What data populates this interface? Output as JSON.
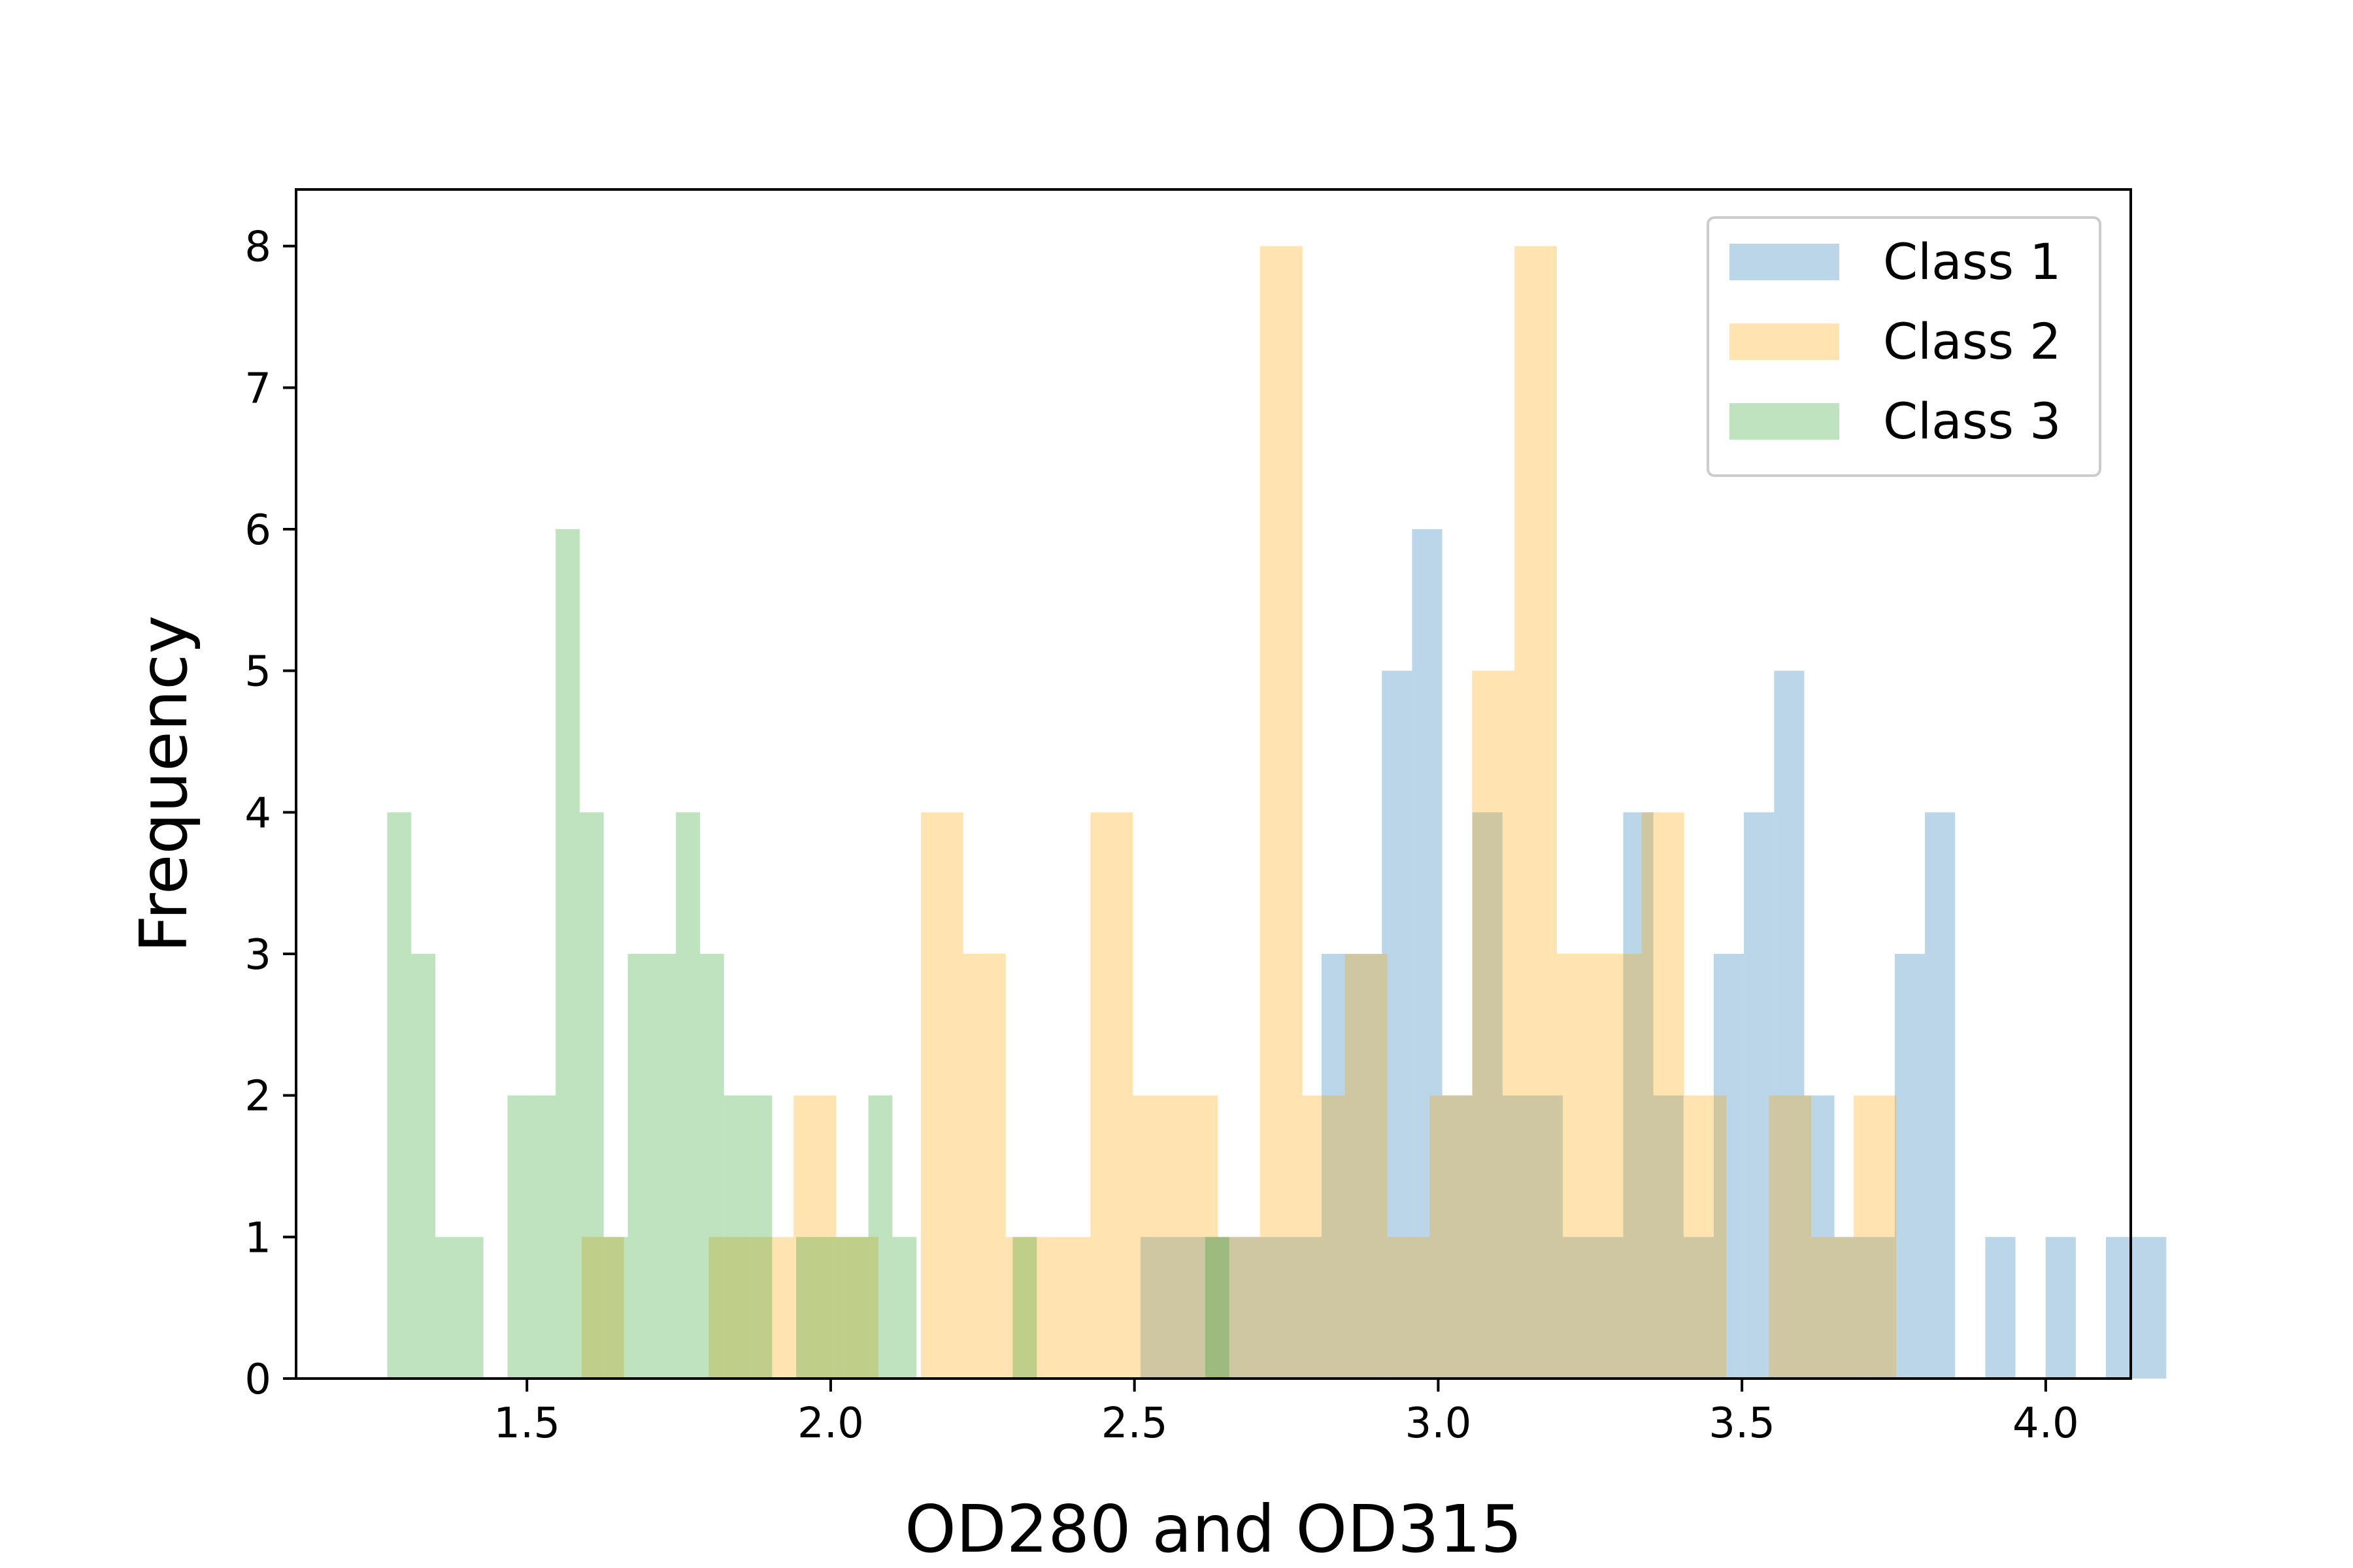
{
  "chart_data": {
    "type": "bar",
    "subtype": "overlapping-histogram",
    "title": "",
    "xlabel": "OD280 and OD315",
    "ylabel": "Frequency",
    "xlim": [
      1.12,
      4.14
    ],
    "ylim": [
      0,
      8.4
    ],
    "xticks": [
      1.5,
      2.0,
      2.5,
      3.0,
      3.5,
      4.0
    ],
    "xtick_labels": [
      "1.5",
      "2.0",
      "2.5",
      "3.0",
      "3.5",
      "4.0"
    ],
    "yticks": [
      0,
      1,
      2,
      3,
      4,
      5,
      6,
      7,
      8
    ],
    "ytick_labels": [
      "0",
      "1",
      "2",
      "3",
      "4",
      "5",
      "6",
      "7",
      "8"
    ],
    "grid": false,
    "legend_position": "upper right",
    "bar_alpha": 0.3,
    "series": [
      {
        "name": "Class 1",
        "color": "#1f77b4",
        "bin_start": 2.51,
        "bin_width": 0.04966,
        "counts": [
          1,
          1,
          1,
          1,
          1,
          1,
          3,
          3,
          5,
          6,
          2,
          4,
          2,
          2,
          1,
          1,
          4,
          2,
          1,
          3,
          4,
          5,
          2,
          1,
          1,
          3,
          4,
          0,
          1,
          0,
          1,
          0,
          1,
          1
        ]
      },
      {
        "name": "Class 2",
        "color": "#ffa500",
        "bin_start": 1.59,
        "bin_width": 0.0698,
        "counts": [
          1,
          0,
          0,
          1,
          1,
          2,
          1,
          0,
          4,
          3,
          1,
          1,
          4,
          2,
          2,
          1,
          8,
          2,
          3,
          1,
          2,
          5,
          8,
          3,
          3,
          4,
          2,
          0,
          2,
          1,
          2
        ]
      },
      {
        "name": "Class 3",
        "color": "#2ca02c",
        "bin_start": 1.27,
        "bin_width": 0.0396,
        "counts": [
          4,
          3,
          1,
          1,
          0,
          2,
          2,
          6,
          4,
          1,
          3,
          3,
          4,
          3,
          2,
          2,
          0,
          1,
          1,
          1,
          2,
          1,
          0,
          0,
          0,
          0,
          1,
          0,
          0,
          0,
          0,
          0,
          0,
          0,
          1
        ]
      }
    ]
  }
}
